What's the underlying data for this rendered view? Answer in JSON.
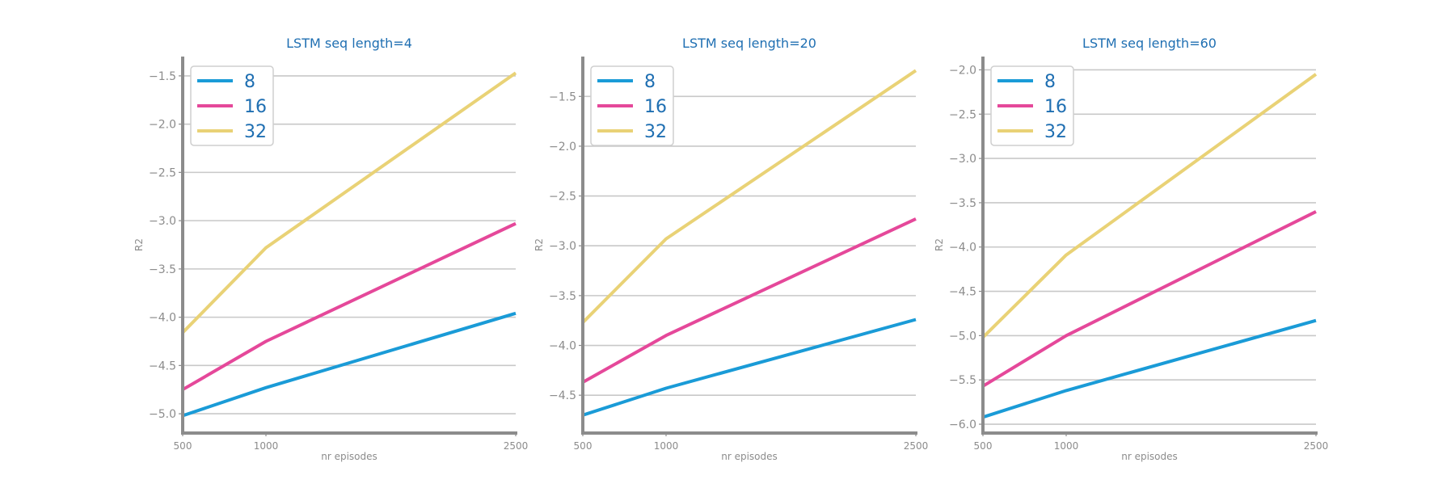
{
  "colors": {
    "background": "#ffffff",
    "title": "#1f6fb2",
    "axis": "#8c8c8c",
    "grid": "#c8c8c8",
    "tick_text": "#8c8c8c",
    "legend_text": "#1f6fb2",
    "legend_border": "#cfcfcf"
  },
  "chart_data": [
    {
      "type": "line",
      "title": "LSTM seq length=4",
      "xlabel": "nr episodes",
      "ylabel": "R2",
      "x": [
        500,
        1000,
        2500
      ],
      "xticks": [
        500,
        1000,
        2500
      ],
      "xtick_labels": [
        "500",
        "1000",
        "2500"
      ],
      "ylim": [
        -5.2,
        -1.3
      ],
      "yticks": [
        -5.0,
        -4.5,
        -4.0,
        -3.5,
        -3.0,
        -2.5,
        -2.0,
        -1.5
      ],
      "ytick_labels": [
        "−5.0",
        "−4.5",
        "−4.0",
        "−3.5",
        "−3.0",
        "−2.5",
        "−2.0",
        "−1.5"
      ],
      "grid": "horizontal",
      "legend": "top-left",
      "series": [
        {
          "name": "8",
          "color": "#1a9bd7",
          "values": [
            -5.02,
            -4.73,
            -3.96
          ]
        },
        {
          "name": "16",
          "color": "#e5489a",
          "values": [
            -4.75,
            -4.25,
            -3.03
          ]
        },
        {
          "name": "32",
          "color": "#e9d276",
          "values": [
            -4.16,
            -3.28,
            -1.47
          ]
        }
      ]
    },
    {
      "type": "line",
      "title": "LSTM seq length=20",
      "xlabel": "nr episodes",
      "ylabel": "R2",
      "x": [
        500,
        1000,
        2500
      ],
      "xticks": [
        500,
        1000,
        2500
      ],
      "xtick_labels": [
        "500",
        "1000",
        "2500"
      ],
      "ylim": [
        -4.88,
        -1.1
      ],
      "yticks": [
        -4.5,
        -4.0,
        -3.5,
        -3.0,
        -2.5,
        -2.0,
        -1.5
      ],
      "ytick_labels": [
        "−4.5",
        "−4.0",
        "−3.5",
        "−3.0",
        "−2.5",
        "−2.0",
        "−1.5"
      ],
      "grid": "horizontal",
      "legend": "top-left",
      "series": [
        {
          "name": "8",
          "color": "#1a9bd7",
          "values": [
            -4.7,
            -4.43,
            -3.74
          ]
        },
        {
          "name": "16",
          "color": "#e5489a",
          "values": [
            -4.37,
            -3.9,
            -2.73
          ]
        },
        {
          "name": "32",
          "color": "#e9d276",
          "values": [
            -3.77,
            -2.93,
            -1.24
          ]
        }
      ]
    },
    {
      "type": "line",
      "title": "LSTM seq length=60",
      "xlabel": "nr episodes",
      "ylabel": "R2",
      "x": [
        500,
        1000,
        2500
      ],
      "xticks": [
        500,
        1000,
        2500
      ],
      "xtick_labels": [
        "500",
        "1000",
        "2500"
      ],
      "ylim": [
        -6.1,
        -1.85
      ],
      "yticks": [
        -6.0,
        -5.5,
        -5.0,
        -4.5,
        -4.0,
        -3.5,
        -3.0,
        -2.5,
        -2.0
      ],
      "ytick_labels": [
        "−6.0",
        "−5.5",
        "−5.0",
        "−4.5",
        "−4.0",
        "−3.5",
        "−3.0",
        "−2.5",
        "−2.0"
      ],
      "grid": "horizontal",
      "legend": "top-left",
      "series": [
        {
          "name": "8",
          "color": "#1a9bd7",
          "values": [
            -5.92,
            -5.62,
            -4.83
          ]
        },
        {
          "name": "16",
          "color": "#e5489a",
          "values": [
            -5.57,
            -5.0,
            -3.6
          ]
        },
        {
          "name": "32",
          "color": "#e9d276",
          "values": [
            -5.02,
            -4.09,
            -2.05
          ]
        }
      ]
    }
  ]
}
